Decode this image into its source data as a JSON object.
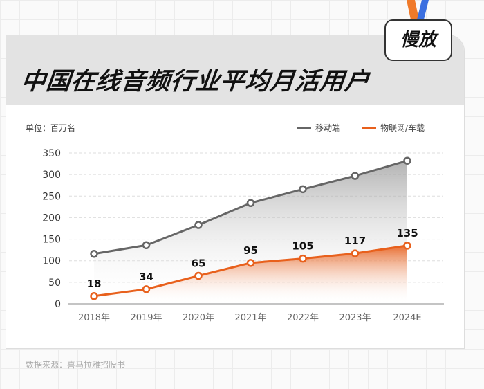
{
  "badge": "慢放",
  "chart_data": {
    "type": "line",
    "title": "中国在线音频行业平均月活用户",
    "unit_label": "单位：百万名",
    "categories": [
      "2018年",
      "2019年",
      "2020年",
      "2021年",
      "2022年",
      "2023年",
      "2024E"
    ],
    "series": [
      {
        "name": "移动端",
        "values": [
          116,
          136,
          183,
          234,
          266,
          297,
          332
        ],
        "color": "#666666"
      },
      {
        "name": "物联网/车载",
        "values": [
          18,
          34,
          65,
          95,
          105,
          117,
          135
        ],
        "color": "#e8601c",
        "labels": [
          "18",
          "34",
          "65",
          "95",
          "105",
          "117",
          "135"
        ]
      }
    ],
    "ylim": [
      0,
      350
    ],
    "yticks": [
      "0",
      "50",
      "100",
      "150",
      "200",
      "250",
      "300",
      "350"
    ],
    "grid": "horizontal dashed",
    "legend": "top-right",
    "source": "数据来源：喜马拉雅招股书"
  }
}
